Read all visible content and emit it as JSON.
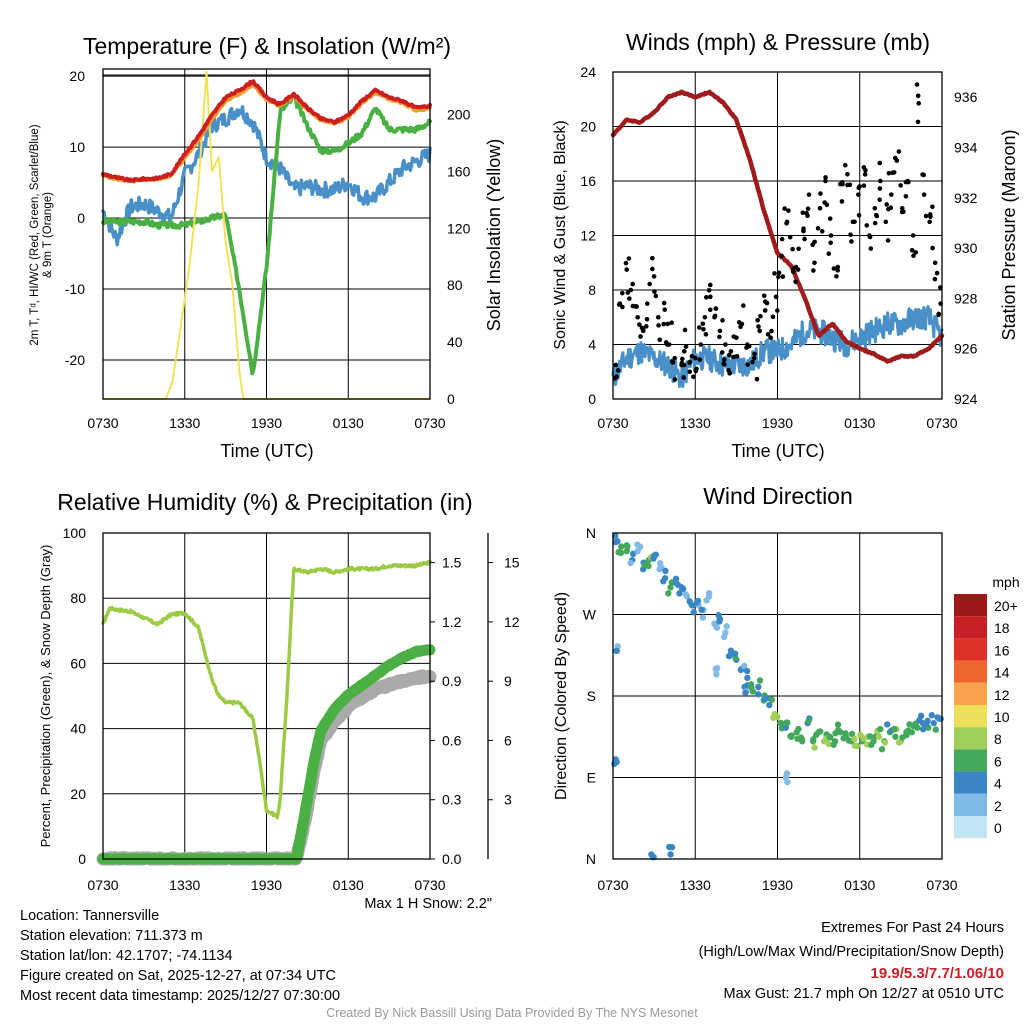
{
  "temp_panel": {
    "title": "Temperature (F) & Insolation (W/m²)",
    "ylabel_left_1": "2m T, Tᵈ, HI/WC (Red, Green, Scarlet/Blue)",
    "ylabel_left_2": "& 9m T (Orange)",
    "ylabel_right": "Solar Insolation (Yellow)",
    "xlabel": "Time (UTC)"
  },
  "wind_panel": {
    "title": "Winds (mph) & Pressure (mb)",
    "ylabel_left": "Sonic Wind & Gust (Blue, Black)",
    "ylabel_right": "Station Pressure (Maroon)",
    "xlabel": "Time (UTC)"
  },
  "rh_panel": {
    "title": "Relative Humidity (%) & Precipitation (in)",
    "ylabel_left": "Percent, Precipitation (Green), & Snow Depth (Gray)",
    "snow_note": "Max 1 H Snow: 2.2\""
  },
  "dir_panel": {
    "title": "Wind Direction",
    "ylabel": "Direction (Colored By Speed)",
    "legend_unit": "mph",
    "legend_labels": [
      "20+",
      "18",
      "16",
      "14",
      "12",
      "10",
      "8",
      "6",
      "4",
      "2",
      "0"
    ],
    "legend_colors": [
      "#9e1a1a",
      "#c62026",
      "#e0302a",
      "#ef6530",
      "#f8a24b",
      "#ece05a",
      "#9fce5a",
      "#43a75c",
      "#3a86c4",
      "#7fbbe6",
      "#bfe5f7"
    ]
  },
  "info": {
    "location": "Location: Tannersville",
    "elevation": "Station elevation: 711.373 m",
    "latlon": "Station lat/lon: 42.1707; -74.1134",
    "created": "Figure created on Sat, 2025-12-27, at 07:34 UTC",
    "recent": "Most recent data timestamp: 2025/12/27 07:30:00",
    "extremes_title": "Extremes For Past 24 Hours",
    "extremes_legend": "(High/Low/Max Wind/Precipitation/Snow Depth)",
    "extremes_values": "19.9/5.3/7.7/1.06/10",
    "max_gust": "Max Gust: 21.7 mph On 12/27 at 0510 UTC",
    "credit": "Created By Nick Bassill Using Data Provided By The NYS Mesonet"
  },
  "colors": {
    "temp_red": "#cc1f1f",
    "temp_orange": "#f29a2e",
    "dewpoint_green": "#4bb043",
    "windchill_blue": "#4a90c8",
    "solar_yellow": "#f3e25a",
    "pressure_maroon": "#a01c1c",
    "wind_blue": "#4a90c8",
    "gust_black": "#000000",
    "rh_lightgreen": "#9cca45",
    "precip_green": "#4bb043",
    "snow_gray": "#aaaaaa"
  },
  "chart_data": [
    {
      "type": "line",
      "title": "Temperature (F) & Insolation (W/m2)",
      "xlabel": "Time (UTC)",
      "x_ticks": [
        "0730",
        "1330",
        "1930",
        "0130",
        "0730"
      ],
      "x_range_hours": [
        0,
        24
      ],
      "ylim": [
        -25.5,
        21
      ],
      "y_ticks": [
        -20,
        -10,
        0,
        10,
        20
      ],
      "y2lim": [
        0,
        232
      ],
      "y2_ticks": [
        0,
        40,
        80,
        120,
        160,
        200
      ],
      "series": [
        {
          "name": "2m T (Red)",
          "axis": "left",
          "x": [
            0,
            1,
            2,
            3,
            4,
            5,
            6,
            7,
            8,
            9,
            10,
            11,
            12,
            13,
            14,
            15,
            16,
            17,
            18,
            19,
            20,
            21,
            22,
            23,
            24
          ],
          "y": [
            6.2,
            5.7,
            5.3,
            5.5,
            5.6,
            6.2,
            9,
            11.5,
            14.5,
            17,
            18,
            19.3,
            17,
            16,
            17.5,
            15.5,
            14,
            13.5,
            14.5,
            16.5,
            18,
            17,
            16.5,
            15.5,
            15.8
          ]
        },
        {
          "name": "9m T (Orange)",
          "axis": "left",
          "x": [
            0,
            1,
            2,
            3,
            4,
            5,
            6,
            7,
            8,
            9,
            10,
            11,
            12,
            13,
            14,
            15,
            16,
            17,
            18,
            19,
            20,
            21,
            22,
            23,
            24
          ],
          "y": [
            6.0,
            5.5,
            5.2,
            5.4,
            5.5,
            6.0,
            8.5,
            11,
            14,
            16.5,
            17.5,
            18.8,
            16.7,
            15.8,
            17.2,
            15.2,
            13.8,
            13.3,
            14.2,
            16.2,
            17.7,
            16.8,
            16.2,
            15.2,
            15.5
          ]
        },
        {
          "name": "Dewpoint (Green)",
          "axis": "left",
          "x": [
            0,
            1,
            2,
            3,
            4,
            5,
            6,
            7,
            8,
            9,
            10,
            11,
            12,
            13,
            14,
            15,
            16,
            17,
            18,
            19,
            20,
            21,
            22,
            23,
            24
          ],
          "y": [
            -0.5,
            -0.5,
            -0.5,
            -0.5,
            -1,
            -1,
            -1,
            -0.5,
            0,
            0.5,
            -10,
            -22,
            -7,
            15,
            17,
            13,
            9.5,
            9.5,
            10.5,
            12,
            15.5,
            12.5,
            12.5,
            12.5,
            13.5
          ]
        },
        {
          "name": "Wind Chill (Blue)",
          "axis": "left",
          "x": [
            0,
            1,
            2,
            3,
            4,
            5,
            6,
            7,
            8,
            9,
            10,
            11,
            12,
            13,
            14,
            15,
            16,
            17,
            18,
            19,
            20,
            21,
            22,
            23,
            24
          ],
          "y": [
            1,
            -3,
            1.5,
            2,
            1,
            0,
            6,
            9,
            13,
            14,
            15.5,
            13.5,
            8.5,
            7,
            4,
            4.5,
            4,
            4,
            5,
            3,
            3,
            5,
            7,
            8,
            9
          ]
        },
        {
          "name": "Solar Insolation (Yellow)",
          "axis": "right",
          "x": [
            0,
            4.6,
            5.1,
            6.3,
            7.0,
            7.6,
            8.0,
            8.5,
            9.0,
            9.5,
            10.0,
            10.3,
            24
          ],
          "y": [
            0,
            0,
            12,
            90,
            150,
            230,
            160,
            170,
            110,
            80,
            20,
            0,
            0
          ]
        }
      ]
    },
    {
      "type": "line",
      "title": "Winds (mph) & Pressure (mb)",
      "xlabel": "Time (UTC)",
      "x_ticks": [
        "0730",
        "1330",
        "1930",
        "0130",
        "0730"
      ],
      "x_range_hours": [
        0,
        24
      ],
      "ylim": [
        0,
        24
      ],
      "y_ticks": [
        0,
        4,
        8,
        12,
        16,
        20,
        24
      ],
      "y2lim": [
        924,
        937
      ],
      "y2_ticks": [
        924,
        926,
        928,
        930,
        932,
        934,
        936
      ],
      "series": [
        {
          "name": "Station Pressure (Maroon)",
          "axis": "right",
          "x": [
            0,
            1,
            2,
            3,
            4,
            5,
            6,
            7,
            8,
            9,
            10,
            11,
            12,
            13,
            14,
            15,
            16,
            17,
            18,
            19,
            20,
            21,
            22,
            23,
            24
          ],
          "y": [
            934.5,
            935.1,
            935.0,
            935.4,
            936.0,
            936.2,
            936.0,
            936.2,
            935.8,
            935.1,
            933.5,
            931.5,
            929.8,
            929.3,
            928.0,
            926.5,
            927.0,
            926.3,
            926.0,
            925.8,
            925.5,
            925.7,
            925.7,
            926.0,
            926.5
          ]
        },
        {
          "name": "Sonic Wind (Blue)",
          "axis": "left",
          "x": [
            0,
            1,
            2,
            3,
            4,
            5,
            6,
            7,
            8,
            9,
            10,
            11,
            12,
            13,
            14,
            15,
            16,
            17,
            18,
            19,
            20,
            21,
            22,
            23,
            24
          ],
          "y": [
            1.5,
            3,
            3.5,
            3,
            2.5,
            1.5,
            3,
            3,
            2.5,
            2.5,
            2.5,
            3.5,
            3.5,
            4,
            5,
            5,
            4.5,
            4,
            4.5,
            5,
            5.5,
            5.5,
            6,
            6,
            4.5
          ]
        },
        {
          "name": "Gust (Black)",
          "axis": "left",
          "x": [
            0.2,
            0.5,
            1.0,
            1.3,
            1.8,
            2.2,
            2.5,
            3.0,
            3.3,
            3.7,
            4.1,
            4.5,
            5.0,
            5.2,
            5.6,
            6.0,
            6.4,
            6.7,
            7.1,
            7.4,
            7.8,
            8.2,
            8.6,
            9.0,
            9.4,
            9.8,
            10.3,
            10.7,
            11.1,
            11.5,
            11.9,
            12.3,
            12.7,
            13.1,
            13.5,
            13.9,
            14.3,
            14.7,
            15.1,
            15.5,
            15.9,
            16.3,
            16.7,
            17.1,
            17.5,
            17.9,
            18.3,
            18.7,
            19.1,
            19.5,
            19.9,
            20.3,
            20.7,
            21.1,
            21.5,
            21.9,
            22.3,
            22.7,
            23.1,
            23.5,
            23.9
          ],
          "y": [
            2.5,
            7,
            9.5,
            8,
            6,
            5,
            7,
            9,
            6,
            5.5,
            4,
            3,
            2.5,
            3.5,
            2,
            3,
            4,
            6,
            7.5,
            6,
            5,
            4,
            3.5,
            4.5,
            5.5,
            4,
            3,
            5,
            6.5,
            4.5,
            7.5,
            10.5,
            13,
            11,
            9.5,
            12.5,
            15,
            10,
            14,
            16,
            12,
            9,
            14.5,
            16.5,
            13,
            15,
            17,
            12,
            14,
            16,
            13,
            15,
            17.5,
            14,
            16,
            12,
            21.7,
            15,
            13,
            10,
            7
          ]
        }
      ]
    },
    {
      "type": "line",
      "title": "Relative Humidity (%) & Precipitation (in)",
      "x_ticks": [
        "0730",
        "1330",
        "1930",
        "0130",
        "0730"
      ],
      "x_range_hours": [
        0,
        24
      ],
      "ylim": [
        0,
        100
      ],
      "y_ticks": [
        0,
        20,
        40,
        60,
        80,
        100
      ],
      "y2lim": [
        0,
        1.65
      ],
      "y2_ticks": [
        0.0,
        0.3,
        0.6,
        0.9,
        1.2,
        1.5
      ],
      "y3_ticks": [
        3,
        6,
        9,
        12,
        15
      ],
      "series": [
        {
          "name": "Relative Humidity (Light Green)",
          "axis": "left",
          "x": [
            0,
            0.5,
            1,
            2,
            3,
            4,
            5,
            6,
            7,
            8,
            8.5,
            9,
            10,
            11,
            11.5,
            12,
            12.8,
            13,
            13.5,
            14,
            15,
            16,
            17,
            18,
            19,
            20,
            21,
            22,
            23,
            24
          ],
          "y": [
            72,
            77,
            76.5,
            76,
            74,
            72,
            75,
            75.5,
            71,
            55,
            50,
            48,
            48,
            43,
            30,
            15,
            13,
            18,
            50,
            89,
            88,
            89,
            88,
            89,
            89,
            89,
            90,
            90,
            90,
            91
          ]
        },
        {
          "name": "Precipitation (Green)",
          "axis": "right",
          "x": [
            0,
            14.2,
            15,
            15.5,
            16,
            17,
            18,
            19,
            20,
            21,
            22,
            23,
            24
          ],
          "y": [
            0,
            0,
            0.3,
            0.5,
            0.65,
            0.76,
            0.83,
            0.88,
            0.93,
            0.98,
            1.02,
            1.05,
            1.06
          ]
        },
        {
          "name": "Snow Depth (Gray)",
          "axis": "right",
          "x": [
            0,
            14.2,
            15,
            15.5,
            16,
            17,
            18,
            19,
            20,
            21,
            22,
            23,
            24
          ],
          "y": [
            0,
            0,
            0.25,
            0.45,
            0.6,
            0.7,
            0.77,
            0.82,
            0.86,
            0.88,
            0.9,
            0.92,
            0.92
          ]
        }
      ]
    },
    {
      "type": "scatter",
      "title": "Wind Direction",
      "ylabel": "Direction (Colored By Speed)",
      "x_ticks": [
        "0730",
        "1330",
        "1930",
        "0130",
        "0730"
      ],
      "x_range_hours": [
        0,
        24
      ],
      "y_ticks": [
        "N",
        "W",
        "S",
        "E",
        "N"
      ],
      "y_tick_degrees": [
        360,
        270,
        180,
        90,
        0
      ],
      "series": [
        {
          "name": "Wind Direction",
          "x": [
            0.2,
            0.6,
            1.0,
            1.4,
            1.8,
            2.2,
            2.6,
            3.0,
            3.4,
            3.8,
            4.2,
            4.6,
            5.0,
            5.4,
            5.8,
            6.2,
            6.6,
            7.0,
            7.4,
            7.8,
            8.2,
            8.6,
            9.0,
            9.4,
            9.8,
            10.2,
            10.6,
            11.0,
            11.4,
            11.8,
            12.2,
            12.6,
            13.0,
            13.4,
            13.8,
            14.2,
            14.6,
            15.0,
            15.4,
            15.8,
            16.2,
            16.6,
            17.0,
            17.4,
            17.8,
            18.2,
            18.6,
            19.0,
            19.4,
            19.8,
            20.2,
            20.6,
            21.0,
            21.4,
            21.8,
            22.2,
            22.6,
            23.0,
            23.4,
            23.8,
            0.3,
            2.8,
            4.2,
            7.5,
            9.6,
            0.2,
            12.6
          ],
          "dir": [
            350,
            345,
            340,
            330,
            340,
            320,
            330,
            335,
            320,
            310,
            300,
            305,
            300,
            290,
            280,
            285,
            275,
            290,
            260,
            265,
            250,
            230,
            220,
            210,
            200,
            185,
            190,
            175,
            170,
            160,
            150,
            145,
            135,
            140,
            130,
            150,
            130,
            140,
            130,
            135,
            130,
            140,
            135,
            130,
            125,
            130,
            135,
            130,
            135,
            130,
            140,
            135,
            130,
            140,
            140,
            145,
            150,
            145,
            150,
            155,
            230,
            5,
            5,
            210,
            190,
            110,
            90
          ],
          "speed": [
            4,
            5,
            6,
            3,
            2,
            4,
            6,
            4,
            2,
            3,
            5,
            4,
            3,
            2,
            4,
            3,
            2,
            1,
            2,
            3,
            2,
            3,
            4,
            3,
            4,
            5,
            4,
            5,
            4,
            7,
            5,
            4,
            5,
            6,
            5,
            4,
            6,
            5,
            7,
            6,
            5,
            6,
            6,
            5,
            7,
            6,
            7,
            6,
            7,
            6,
            5,
            6,
            7,
            5,
            6,
            5,
            4,
            5,
            4,
            4,
            2,
            3,
            3,
            2,
            3,
            3,
            2
          ]
        }
      ]
    }
  ]
}
